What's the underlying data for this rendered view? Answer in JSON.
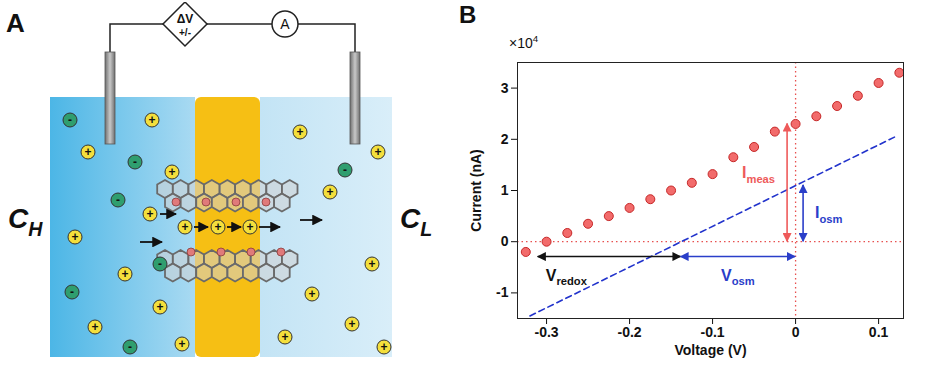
{
  "diagram": {
    "panel_label": "A",
    "source": {
      "main": "ΔV",
      "sub": "+/-"
    },
    "ammeter": "A",
    "reservoirs": {
      "high": {
        "main": "C",
        "sub": "H"
      },
      "low": {
        "main": "C",
        "sub": "L"
      }
    },
    "ion_signs": {
      "cation": "+",
      "anion": "-"
    }
  },
  "chart_data": {
    "type": "scatter",
    "panel_label": "B",
    "x_label": "Voltage (V)",
    "y_label": "Current (nA)",
    "y_multiplier": {
      "main": "×10",
      "sup": "4"
    },
    "xlim": [
      -0.335,
      0.13
    ],
    "xticks": [
      -0.3,
      -0.2,
      -0.1,
      0,
      0.1
    ],
    "ylim": [
      -1.5,
      3.5
    ],
    "yticks": [
      -1,
      0,
      1,
      2,
      3
    ],
    "grid": false,
    "series": [
      {
        "type": "scatter",
        "marker": "circle",
        "color": "#f26b6b",
        "x": [
          -0.325,
          -0.3,
          -0.275,
          -0.25,
          -0.225,
          -0.2,
          -0.175,
          -0.15,
          -0.125,
          -0.1,
          -0.075,
          -0.05,
          -0.025,
          0,
          0.025,
          0.05,
          0.075,
          0.1,
          0.125
        ],
        "values": [
          -0.2,
          0.0,
          0.17,
          0.35,
          0.5,
          0.66,
          0.83,
          1.0,
          1.15,
          1.32,
          1.65,
          1.85,
          2.15,
          2.3,
          2.45,
          2.65,
          2.85,
          3.1,
          3.3
        ]
      },
      {
        "type": "line",
        "line_style": "dashed",
        "color": "#2233cc",
        "x": [
          -0.32,
          0.12
        ],
        "values": [
          -1.45,
          2.05
        ]
      }
    ],
    "reference_lines": {
      "x": 0,
      "y": 0,
      "color": "#e8504f",
      "line_style": "dotted"
    },
    "annotations": [
      {
        "label": {
          "main": "I",
          "sub": "meas"
        },
        "color": "#ee5a5a",
        "from": [
          0,
          0
        ],
        "to": [
          0,
          2.3
        ]
      },
      {
        "label": {
          "main": "I",
          "sub": "osm"
        },
        "color": "#2a3ec9",
        "from": [
          0,
          0
        ],
        "to": [
          0,
          1.1
        ]
      },
      {
        "label": {
          "main": "V",
          "sub": "redox"
        },
        "color": "#111111",
        "from": [
          -0.31,
          -0.3
        ],
        "to": [
          -0.138,
          -0.3
        ]
      },
      {
        "label": {
          "main": "V",
          "sub": "osm"
        },
        "color": "#2a3ec9",
        "from": [
          -0.138,
          -0.3
        ],
        "to": [
          0,
          -0.3
        ]
      }
    ]
  }
}
